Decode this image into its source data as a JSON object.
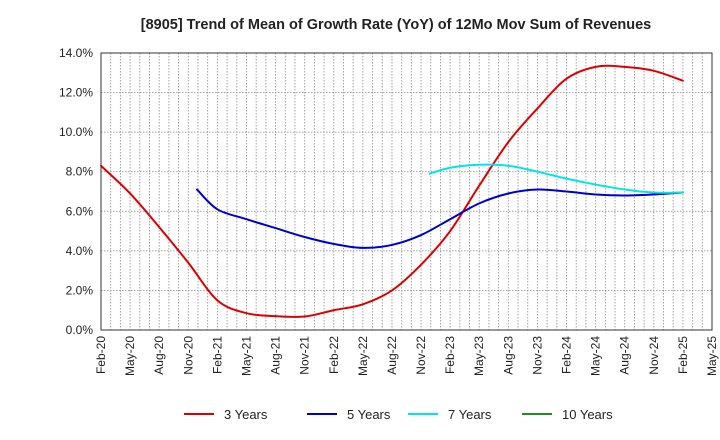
{
  "chart_data": {
    "type": "line",
    "title": "[8905]  Trend of Mean of Growth Rate (YoY) of 12Mo Mov Sum of Revenues",
    "xlabel": "",
    "ylabel": "",
    "ylim": [
      0,
      14
    ],
    "ytick_values": [
      0,
      2,
      4,
      6,
      8,
      10,
      12,
      14
    ],
    "ytick_labels": [
      "0.0%",
      "2.0%",
      "4.0%",
      "6.0%",
      "8.0%",
      "10.0%",
      "12.0%",
      "14.0%"
    ],
    "x_categories": [
      "Feb-20",
      "May-20",
      "Aug-20",
      "Nov-20",
      "Feb-21",
      "May-21",
      "Aug-21",
      "Nov-21",
      "Feb-22",
      "May-22",
      "Aug-22",
      "Nov-22",
      "Feb-23",
      "May-23",
      "Aug-23",
      "Nov-23",
      "Feb-24",
      "May-24",
      "Aug-24",
      "Nov-24",
      "Feb-25",
      "May-25"
    ],
    "grid": true,
    "legend_position": "bottom",
    "series": [
      {
        "name": "3 Years",
        "color": "#dd0000",
        "points": [
          [
            0,
            8.3
          ],
          [
            1,
            6.9
          ],
          [
            2,
            5.2
          ],
          [
            3,
            3.4
          ],
          [
            4,
            1.5
          ],
          [
            5,
            0.85
          ],
          [
            6,
            0.7
          ],
          [
            7,
            0.68
          ],
          [
            8,
            1.0
          ],
          [
            9,
            1.3
          ],
          [
            10,
            2.0
          ],
          [
            11,
            3.3
          ],
          [
            12,
            5.0
          ],
          [
            13,
            7.3
          ],
          [
            14,
            9.5
          ],
          [
            15,
            11.2
          ],
          [
            16,
            12.7
          ],
          [
            17,
            13.3
          ],
          [
            18,
            13.3
          ],
          [
            19,
            13.1
          ],
          [
            20,
            12.6
          ]
        ]
      },
      {
        "name": "5 Years",
        "color": "#0000cc",
        "points": [
          [
            3.3,
            7.1
          ],
          [
            4,
            6.1
          ],
          [
            5,
            5.6
          ],
          [
            6,
            5.15
          ],
          [
            7,
            4.7
          ],
          [
            8,
            4.35
          ],
          [
            9,
            4.15
          ],
          [
            10,
            4.3
          ],
          [
            11,
            4.8
          ],
          [
            12,
            5.6
          ],
          [
            13,
            6.4
          ],
          [
            14,
            6.9
          ],
          [
            15,
            7.1
          ],
          [
            16,
            7.0
          ],
          [
            17,
            6.85
          ],
          [
            18,
            6.8
          ],
          [
            19,
            6.85
          ],
          [
            20,
            6.95
          ]
        ]
      },
      {
        "name": "7 Years",
        "color": "#00e5e5",
        "points": [
          [
            11.3,
            7.9
          ],
          [
            12,
            8.2
          ],
          [
            13,
            8.35
          ],
          [
            14,
            8.3
          ],
          [
            15,
            8.0
          ],
          [
            16,
            7.65
          ],
          [
            17,
            7.35
          ],
          [
            18,
            7.1
          ],
          [
            19,
            6.95
          ],
          [
            20,
            6.95
          ]
        ]
      },
      {
        "name": "10 Years",
        "color": "#228b22",
        "points": []
      }
    ]
  }
}
